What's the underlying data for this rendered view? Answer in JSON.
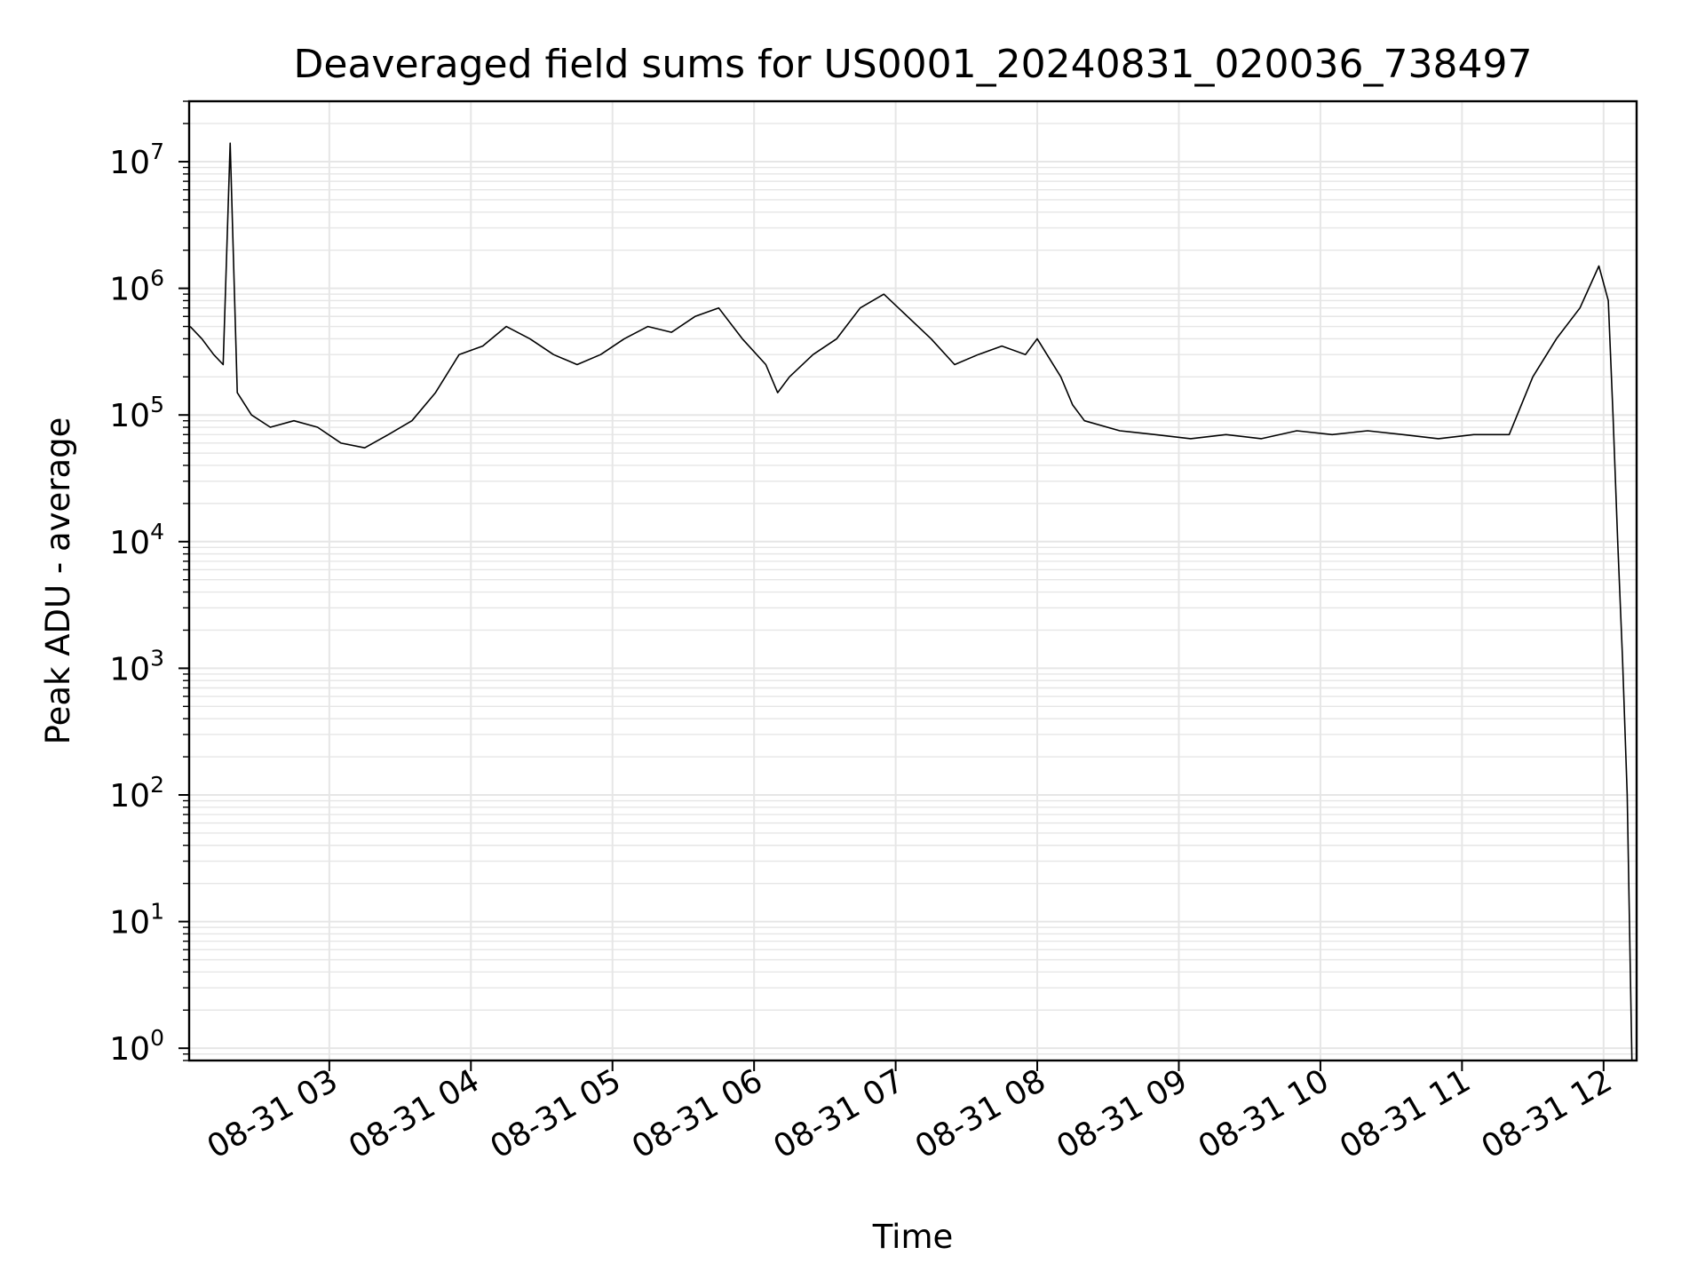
{
  "chart_data": {
    "type": "line",
    "title": "Deaveraged field sums for US0001_20240831_020036_738497",
    "xlabel": "Time",
    "ylabel": "Peak ADU - average",
    "yscale": "log",
    "ylim": [
      0.8,
      30000000
    ],
    "xlim": [
      "2024-08-31 02:00:36",
      "2024-08-31 12:14:00"
    ],
    "grid": true,
    "line_color": "#000000",
    "grid_color": "#e6e6e6",
    "x_ticks": [
      {
        "time": "2024-08-31 03:00",
        "label": "08-31 03"
      },
      {
        "time": "2024-08-31 04:00",
        "label": "08-31 04"
      },
      {
        "time": "2024-08-31 05:00",
        "label": "08-31 05"
      },
      {
        "time": "2024-08-31 06:00",
        "label": "08-31 06"
      },
      {
        "time": "2024-08-31 07:00",
        "label": "08-31 07"
      },
      {
        "time": "2024-08-31 08:00",
        "label": "08-31 08"
      },
      {
        "time": "2024-08-31 09:00",
        "label": "08-31 09"
      },
      {
        "time": "2024-08-31 10:00",
        "label": "08-31 10"
      },
      {
        "time": "2024-08-31 11:00",
        "label": "08-31 11"
      },
      {
        "time": "2024-08-31 12:00",
        "label": "08-31 12"
      }
    ],
    "y_ticks": [
      {
        "value": 1,
        "base": "10",
        "exp": "0"
      },
      {
        "value": 10,
        "base": "10",
        "exp": "1"
      },
      {
        "value": 100,
        "base": "10",
        "exp": "2"
      },
      {
        "value": 1000,
        "base": "10",
        "exp": "3"
      },
      {
        "value": 10000,
        "base": "10",
        "exp": "4"
      },
      {
        "value": 100000,
        "base": "10",
        "exp": "5"
      },
      {
        "value": 1000000,
        "base": "10",
        "exp": "6"
      },
      {
        "value": 10000000,
        "base": "10",
        "exp": "7"
      }
    ],
    "series": [
      {
        "points": [
          [
            "2024-08-31 02:01",
            500000
          ],
          [
            "2024-08-31 02:06",
            400000
          ],
          [
            "2024-08-31 02:11",
            300000
          ],
          [
            "2024-08-31 02:15",
            250000
          ],
          [
            "2024-08-31 02:18",
            14000000
          ],
          [
            "2024-08-31 02:21",
            150000
          ],
          [
            "2024-08-31 02:27",
            100000
          ],
          [
            "2024-08-31 02:35",
            80000
          ],
          [
            "2024-08-31 02:45",
            90000
          ],
          [
            "2024-08-31 02:55",
            80000
          ],
          [
            "2024-08-31 03:05",
            60000
          ],
          [
            "2024-08-31 03:15",
            55000
          ],
          [
            "2024-08-31 03:25",
            70000
          ],
          [
            "2024-08-31 03:35",
            90000
          ],
          [
            "2024-08-31 03:45",
            150000
          ],
          [
            "2024-08-31 03:55",
            300000
          ],
          [
            "2024-08-31 04:05",
            350000
          ],
          [
            "2024-08-31 04:15",
            500000
          ],
          [
            "2024-08-31 04:25",
            400000
          ],
          [
            "2024-08-31 04:35",
            300000
          ],
          [
            "2024-08-31 04:45",
            250000
          ],
          [
            "2024-08-31 04:55",
            300000
          ],
          [
            "2024-08-31 05:05",
            400000
          ],
          [
            "2024-08-31 05:15",
            500000
          ],
          [
            "2024-08-31 05:25",
            450000
          ],
          [
            "2024-08-31 05:35",
            600000
          ],
          [
            "2024-08-31 05:45",
            700000
          ],
          [
            "2024-08-31 05:55",
            400000
          ],
          [
            "2024-08-31 06:05",
            250000
          ],
          [
            "2024-08-31 06:10",
            150000
          ],
          [
            "2024-08-31 06:15",
            200000
          ],
          [
            "2024-08-31 06:25",
            300000
          ],
          [
            "2024-08-31 06:35",
            400000
          ],
          [
            "2024-08-31 06:45",
            700000
          ],
          [
            "2024-08-31 06:55",
            900000
          ],
          [
            "2024-08-31 07:05",
            600000
          ],
          [
            "2024-08-31 07:15",
            400000
          ],
          [
            "2024-08-31 07:25",
            250000
          ],
          [
            "2024-08-31 07:35",
            300000
          ],
          [
            "2024-08-31 07:45",
            350000
          ],
          [
            "2024-08-31 07:55",
            300000
          ],
          [
            "2024-08-31 08:00",
            400000
          ],
          [
            "2024-08-31 08:10",
            200000
          ],
          [
            "2024-08-31 08:15",
            120000
          ],
          [
            "2024-08-31 08:20",
            90000
          ],
          [
            "2024-08-31 08:35",
            75000
          ],
          [
            "2024-08-31 08:50",
            70000
          ],
          [
            "2024-08-31 09:05",
            65000
          ],
          [
            "2024-08-31 09:20",
            70000
          ],
          [
            "2024-08-31 09:35",
            65000
          ],
          [
            "2024-08-31 09:50",
            75000
          ],
          [
            "2024-08-31 10:05",
            70000
          ],
          [
            "2024-08-31 10:20",
            75000
          ],
          [
            "2024-08-31 10:35",
            70000
          ],
          [
            "2024-08-31 10:50",
            65000
          ],
          [
            "2024-08-31 11:05",
            70000
          ],
          [
            "2024-08-31 11:20",
            70000
          ],
          [
            "2024-08-31 11:30",
            200000
          ],
          [
            "2024-08-31 11:40",
            400000
          ],
          [
            "2024-08-31 11:50",
            700000
          ],
          [
            "2024-08-31 11:58",
            1500000
          ],
          [
            "2024-08-31 12:02",
            800000
          ],
          [
            "2024-08-31 12:04",
            100000
          ],
          [
            "2024-08-31 12:06",
            10000
          ],
          [
            "2024-08-31 12:08",
            1200
          ],
          [
            "2024-08-31 12:10",
            100
          ],
          [
            "2024-08-31 12:12",
            0.8
          ]
        ]
      }
    ]
  }
}
